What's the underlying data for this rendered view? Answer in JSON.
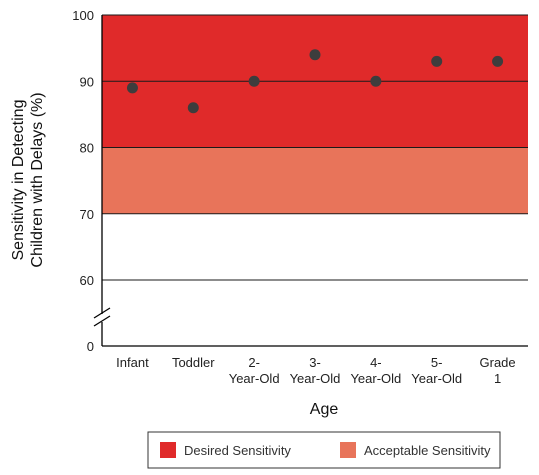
{
  "chart_data": {
    "type": "scatter",
    "categories": [
      [
        "Infant"
      ],
      [
        "Toddler"
      ],
      [
        "2-",
        "Year-Old"
      ],
      [
        "3-",
        "Year-Old"
      ],
      [
        "4-",
        "Year-Old"
      ],
      [
        "5-",
        "Year-Old"
      ],
      [
        "Grade",
        "1"
      ]
    ],
    "values": [
      89,
      86,
      90,
      94,
      90,
      93,
      93
    ],
    "xlabel": "Age",
    "ylabel": [
      "Sensitivity in Detecting",
      "Children with Delays (%)"
    ],
    "yticks": [
      0,
      60,
      70,
      80,
      90,
      100
    ],
    "ylim_visible": [
      55,
      100
    ],
    "axis_break": true,
    "grid": true,
    "bands": [
      {
        "name": "Desired Sensitivity",
        "from": 80,
        "to": 100,
        "color": "#e02a2a"
      },
      {
        "name": "Acceptable Sensitivity",
        "from": 70,
        "to": 80,
        "color": "#e8745a"
      }
    ],
    "marker_color": "#3d3d3d",
    "legend": {
      "position": "bottom",
      "items": [
        {
          "label": "Desired Sensitivity",
          "color": "#e02a2a"
        },
        {
          "label": "Acceptable Sensitivity",
          "color": "#e8745a"
        }
      ]
    }
  }
}
